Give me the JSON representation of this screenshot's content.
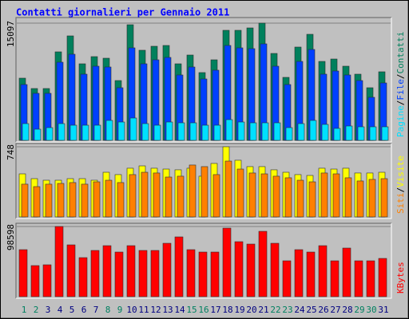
{
  "title": "Contatti giornalieri per Gennaio 2011",
  "legend_separator": "/",
  "chart_data": [
    {
      "type": "bar",
      "ylim": [
        0,
        15097
      ],
      "yticks": [
        15097
      ],
      "series": [
        {
          "name": "Contatti",
          "color": "#00805c",
          "values": [
            8011,
            6676,
            6676,
            11400,
            13454,
            9859,
            10784,
            10578,
            7703,
            14892,
            11605,
            12119,
            12221,
            9859,
            10989,
            8730,
            10373,
            14173,
            14173,
            14481,
            15097,
            11194,
            8113,
            12016,
            13659,
            10167,
            10475,
            9551,
            8524,
            6778,
            8832
          ]
        },
        {
          "name": "File",
          "color": "#0040ff",
          "values": [
            7189,
            6059,
            6059,
            10065,
            11092,
            8524,
            9551,
            9448,
            6778,
            11913,
            9859,
            10373,
            10681,
            8421,
            9448,
            7908,
            9038,
            12221,
            11913,
            11811,
            12427,
            9551,
            7189,
            10167,
            11708,
            8524,
            8935,
            8421,
            7703,
            5546,
            7394
          ]
        },
        {
          "name": "Pagine",
          "color": "#00e0ff",
          "values": [
            2157,
            1438,
            1643,
            2157,
            1951,
            1951,
            1951,
            2568,
            2362,
            2876,
            2157,
            1951,
            2362,
            2259,
            2259,
            1951,
            1951,
            2670,
            2362,
            2259,
            2259,
            2259,
            1643,
            2157,
            2568,
            2054,
            1541,
            1849,
            1746,
            1746,
            1746
          ]
        }
      ]
    },
    {
      "type": "bar",
      "ylim": [
        0,
        748
      ],
      "yticks": [
        748
      ],
      "series": [
        {
          "name": "Visite",
          "color": "#ffff00",
          "values": [
            459,
            408,
            391,
            391,
            408,
            408,
            391,
            476,
            451,
            519,
            544,
            519,
            510,
            502,
            519,
            434,
            570,
            748,
            604,
            536,
            536,
            502,
            476,
            451,
            442,
            519,
            510,
            519,
            468,
            468,
            476
          ]
        },
        {
          "name": "Siti",
          "color": "#ff8000",
          "values": [
            349,
            323,
            349,
            357,
            366,
            349,
            374,
            391,
            366,
            451,
            476,
            468,
            425,
            434,
            553,
            536,
            451,
            595,
            510,
            468,
            459,
            434,
            417,
            391,
            374,
            468,
            459,
            417,
            383,
            400,
            408
          ]
        }
      ]
    },
    {
      "type": "bar",
      "ylim": [
        0,
        98598
      ],
      "yticks": [
        98598
      ],
      "categories": [
        "1",
        "2",
        "3",
        "4",
        "5",
        "6",
        "7",
        "8",
        "9",
        "10",
        "11",
        "12",
        "13",
        "14",
        "15",
        "16",
        "17",
        "18",
        "19",
        "20",
        "21",
        "22",
        "23",
        "24",
        "25",
        "26",
        "27",
        "28",
        "29",
        "30",
        "31"
      ],
      "label_colors": [
        "#008060",
        "#008060",
        "#000080",
        "#000080",
        "#000080",
        "#000080",
        "#000080",
        "#008060",
        "#008060",
        "#000080",
        "#000080",
        "#000080",
        "#000080",
        "#000080",
        "#008060",
        "#008060",
        "#000080",
        "#000080",
        "#000080",
        "#000080",
        "#000080",
        "#008060",
        "#008060",
        "#000080",
        "#000080",
        "#000080",
        "#000080",
        "#000080",
        "#008060",
        "#008060",
        "#000080"
      ],
      "series": [
        {
          "name": "KBytes",
          "color": "#ff0000",
          "values": [
            66080,
            43680,
            44800,
            98598,
            72800,
            54880,
            64960,
            71680,
            62720,
            71680,
            64960,
            64960,
            75040,
            84000,
            66080,
            62720,
            62720,
            96320,
            77280,
            73920,
            91840,
            75040,
            50400,
            66080,
            62720,
            71680,
            50400,
            68320,
            50400,
            50400,
            53760
          ]
        }
      ]
    }
  ]
}
